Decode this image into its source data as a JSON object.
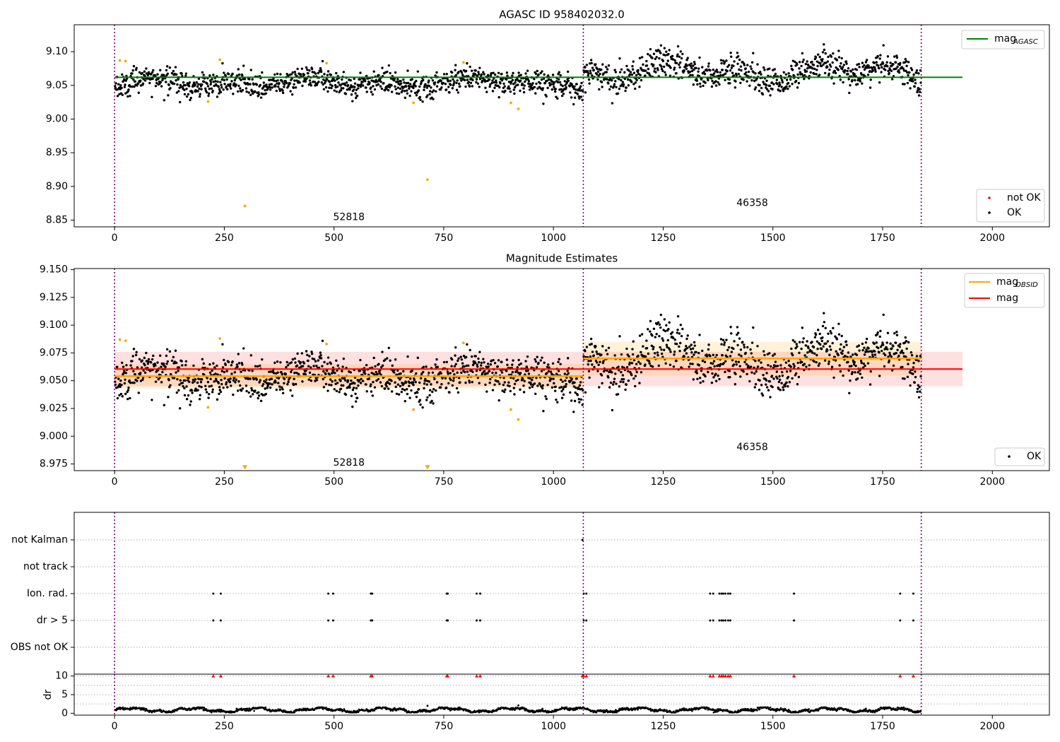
{
  "chart_data": [
    {
      "id": "agasc",
      "type": "scatter",
      "title": "AGASC ID 958402032.0",
      "xlabel": "",
      "ylabel": "",
      "xlim": [
        -92,
        2130
      ],
      "ylim": [
        8.84,
        9.14
      ],
      "xticks": [
        0,
        250,
        500,
        750,
        1000,
        1250,
        1500,
        1750,
        2000
      ],
      "yticks": [
        8.85,
        8.9,
        8.95,
        9.0,
        9.05,
        9.1
      ],
      "ytick_labels": [
        "8.85",
        "8.90",
        "8.95",
        "9.00",
        "9.05",
        "9.10"
      ],
      "obsid_boundaries": [
        0,
        1068,
        1838
      ],
      "obsid_labels": [
        {
          "text": "52818",
          "x": 534,
          "y": 8.854
        },
        {
          "text": "46358",
          "x": 1453,
          "y": 8.875
        }
      ],
      "reference_lines": [
        {
          "name": "mag_AGASC",
          "y": 9.062,
          "x": [
            0,
            1932
          ],
          "color": "#008000"
        }
      ],
      "segments": [
        {
          "x0": 0,
          "x1": 1068,
          "mean": 9.054,
          "jitter": 0.009,
          "wave": 0.007
        },
        {
          "x0": 1068,
          "x1": 1838,
          "mean": 9.07,
          "jitter": 0.011,
          "wave": 0.014
        }
      ],
      "outliers": [
        {
          "x": 12,
          "y": 9.087
        },
        {
          "x": 25,
          "y": 9.086
        },
        {
          "x": 213,
          "y": 9.026
        },
        {
          "x": 240,
          "y": 9.088
        },
        {
          "x": 297,
          "y": 8.871
        },
        {
          "x": 483,
          "y": 9.083
        },
        {
          "x": 681,
          "y": 9.024
        },
        {
          "x": 713,
          "y": 8.91
        },
        {
          "x": 795,
          "y": 9.084
        },
        {
          "x": 903,
          "y": 9.024
        },
        {
          "x": 920,
          "y": 9.015
        }
      ],
      "legend": {
        "upper_right": [
          {
            "label_main": "mag",
            "label_sub": "AGASC",
            "color": "#008000",
            "marker": "line"
          }
        ],
        "lower_right": [
          {
            "label": "not OK",
            "color": "#ff0000",
            "marker": "dot"
          },
          {
            "label": "OK",
            "color": "#000000",
            "marker": "dot"
          }
        ]
      },
      "colors": {
        "ok": "#000000",
        "not_ok": "#ff0000",
        "outlier": "#ffa500",
        "boundary": "#800080"
      }
    },
    {
      "id": "estimates",
      "type": "scatter",
      "title": "Magnitude Estimates",
      "xlabel": "",
      "ylabel": "",
      "xlim": [
        -92,
        2130
      ],
      "ylim": [
        8.969,
        9.151
      ],
      "xticks": [
        0,
        250,
        500,
        750,
        1000,
        1250,
        1500,
        1750,
        2000
      ],
      "yticks": [
        8.975,
        9.0,
        9.025,
        9.05,
        9.075,
        9.1,
        9.125,
        9.15
      ],
      "ytick_labels": [
        "8.975",
        "9.000",
        "9.025",
        "9.050",
        "9.075",
        "9.100",
        "9.125",
        "9.150"
      ],
      "obsid_boundaries": [
        0,
        1068,
        1838
      ],
      "obsid_labels": [
        {
          "text": "52818",
          "x": 534,
          "y": 8.976
        },
        {
          "text": "46358",
          "x": 1453,
          "y": 8.99
        }
      ],
      "mag": {
        "value": 9.0605,
        "band": [
          9.045,
          9.076
        ],
        "x": [
          0,
          1932
        ],
        "color": "#ff0000"
      },
      "mag_obsid": [
        {
          "x0": 0,
          "x1": 1068,
          "value": 9.054,
          "band": [
            9.043,
            9.065
          ]
        },
        {
          "x0": 1068,
          "x1": 1838,
          "value": 9.07,
          "band": [
            9.055,
            9.085
          ]
        }
      ],
      "clipped_markers": [
        {
          "x": 297,
          "y": 8.972
        },
        {
          "x": 713,
          "y": 8.972
        }
      ],
      "legend": {
        "upper_right": [
          {
            "label_main": "mag",
            "label_sub": "OBSID",
            "color": "#ffa500",
            "marker": "line"
          },
          {
            "label_main": "mag",
            "label_sub": "",
            "color": "#ff0000",
            "marker": "line"
          }
        ],
        "lower_right": [
          {
            "label": "OK",
            "color": "#000000",
            "marker": "dot"
          }
        ]
      }
    },
    {
      "id": "flags",
      "type": "scatter",
      "title": "",
      "xlim": [
        -92,
        2130
      ],
      "categories": [
        "not Kalman",
        "not track",
        "Ion. rad.",
        "dr > 5",
        "OBS not OK"
      ],
      "flag_points": {
        "not Kalman": [
          1066
        ],
        "not track": [],
        "Ion. rad.": [
          225,
          242,
          487,
          498,
          584,
          587,
          757,
          759,
          825,
          833,
          1069,
          1075,
          1357,
          1364,
          1378,
          1383,
          1387,
          1392,
          1398,
          1403,
          1548,
          1790,
          1820
        ],
        "dr > 5": [
          225,
          242,
          487,
          498,
          584,
          587,
          757,
          759,
          825,
          833,
          1069,
          1075,
          1357,
          1364,
          1378,
          1383,
          1387,
          1392,
          1398,
          1403,
          1548,
          1790,
          1820
        ],
        "OBS not OK": []
      }
    },
    {
      "id": "dr",
      "type": "scatter",
      "title": "",
      "ylabel": "dr",
      "xlim": [
        -92,
        2130
      ],
      "ylim": [
        -0.5,
        10.5
      ],
      "yticks": [
        0,
        5,
        10
      ],
      "ytick_labels": [
        "0",
        "5",
        "10"
      ],
      "xticks": [
        0,
        250,
        500,
        750,
        1000,
        1250,
        1500,
        1750,
        2000
      ],
      "clipped_x": [
        225,
        242,
        487,
        498,
        584,
        587,
        757,
        759,
        825,
        833,
        1066,
        1069,
        1075,
        1357,
        1364,
        1378,
        1383,
        1387,
        1392,
        1398,
        1403,
        1548,
        1790,
        1820
      ],
      "n_points": 1838,
      "typical_dr": [
        0.2,
        1.6
      ],
      "extra_points": [
        {
          "x": 713,
          "y": 2.0
        },
        {
          "x": 920,
          "y": 2.1
        }
      ]
    }
  ]
}
